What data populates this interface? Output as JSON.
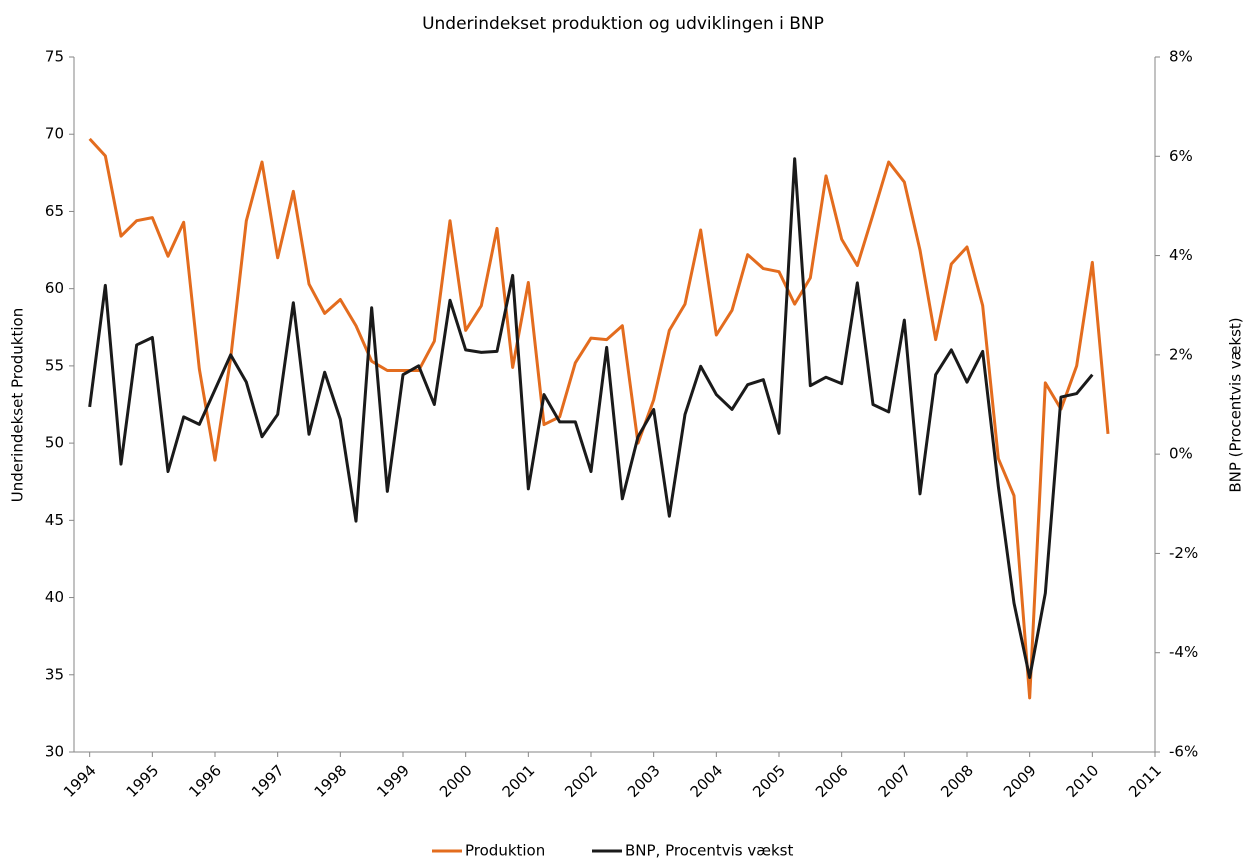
{
  "chart_data": {
    "type": "line",
    "title": "Underindekset produktion og udviklingen i BNP",
    "y_label": "Underindekset Produktion",
    "y2_label": "BNP (Procentvis vækst)",
    "x": [
      1994,
      1994.25,
      1994.5,
      1994.75,
      1995,
      1995.25,
      1995.5,
      1995.75,
      1996,
      1996.25,
      1996.5,
      1996.75,
      1997,
      1997.25,
      1997.5,
      1997.75,
      1998,
      1998.25,
      1998.5,
      1998.75,
      1999,
      1999.25,
      1999.5,
      1999.75,
      2000,
      2000.25,
      2000.5,
      2000.75,
      2001,
      2001.25,
      2001.5,
      2001.75,
      2002,
      2002.25,
      2002.5,
      2002.75,
      2003,
      2003.25,
      2003.5,
      2003.75,
      2004,
      2004.25,
      2004.5,
      2004.75,
      2005,
      2005.25,
      2005.5,
      2005.75,
      2006,
      2006.25,
      2006.5,
      2006.75,
      2007,
      2007.25,
      2007.5,
      2007.75,
      2008,
      2008.25,
      2008.5,
      2008.75,
      2009,
      2009.25,
      2009.5,
      2009.75,
      2010,
      2010.25
    ],
    "series": [
      {
        "name": "Produktion",
        "color": "#e36c1e",
        "axis": "y",
        "values": [
          69.7,
          68.6,
          63.4,
          64.4,
          64.6,
          62.1,
          64.3,
          54.8,
          48.9,
          55.5,
          64.4,
          68.2,
          62.0,
          66.3,
          60.3,
          58.4,
          59.3,
          57.6,
          55.3,
          54.7,
          54.7,
          54.7,
          56.6,
          64.4,
          57.3,
          58.9,
          63.9,
          54.9,
          60.4,
          51.2,
          51.7,
          55.2,
          56.8,
          56.7,
          57.6,
          50.0,
          52.8,
          57.3,
          59.0,
          63.8,
          57.0,
          58.6,
          62.2,
          61.3,
          61.1,
          59.0,
          60.7,
          67.3,
          63.2,
          61.5,
          64.8,
          68.2,
          66.9,
          62.5,
          56.7,
          61.6,
          62.7,
          58.9,
          49.0,
          46.6,
          33.5,
          53.9,
          52.2,
          55.0,
          61.7,
          50.6
        ]
      },
      {
        "name": "BNP, Procentvis vækst",
        "color": "#1a1a1a",
        "axis": "y2",
        "values": [
          0.95,
          3.4,
          -0.2,
          2.2,
          2.35,
          -0.35,
          0.75,
          0.6,
          1.3,
          2.0,
          1.45,
          0.35,
          0.8,
          3.05,
          0.4,
          1.65,
          0.7,
          -1.35,
          2.95,
          -0.75,
          1.6,
          1.78,
          1.0,
          3.1,
          2.1,
          2.05,
          2.07,
          3.6,
          -0.7,
          1.2,
          0.65,
          0.65,
          -0.35,
          2.15,
          -0.9,
          0.35,
          0.9,
          -1.25,
          0.8,
          1.77,
          1.2,
          0.9,
          1.4,
          1.5,
          0.42,
          5.95,
          1.38,
          1.55,
          1.42,
          3.45,
          1.0,
          0.85,
          2.7,
          -0.8,
          1.6,
          2.1,
          1.45,
          2.07,
          -0.65,
          -3.0,
          -4.5,
          -2.8,
          1.15,
          1.22,
          1.6,
          null
        ]
      }
    ],
    "xlim": [
      1993.75,
      2011
    ],
    "xticks": [
      1994,
      1995,
      1996,
      1997,
      1998,
      1999,
      2000,
      2001,
      2002,
      2003,
      2004,
      2005,
      2006,
      2007,
      2008,
      2009,
      2010,
      2011
    ],
    "ylim": [
      30,
      75
    ],
    "yticks": [
      30,
      35,
      40,
      45,
      50,
      55,
      60,
      65,
      70,
      75
    ],
    "y2lim": [
      -6,
      8
    ],
    "y2ticks": [
      {
        "value": -6,
        "label": "-6%"
      },
      {
        "value": -4,
        "label": "-4%"
      },
      {
        "value": -2,
        "label": "-2%"
      },
      {
        "value": 0,
        "label": "0%"
      },
      {
        "value": 2,
        "label": "2%"
      },
      {
        "value": 4,
        "label": "4%"
      },
      {
        "value": 6,
        "label": "6%"
      },
      {
        "value": 8,
        "label": "8%"
      }
    ],
    "grid": false,
    "legend": "bottom"
  }
}
